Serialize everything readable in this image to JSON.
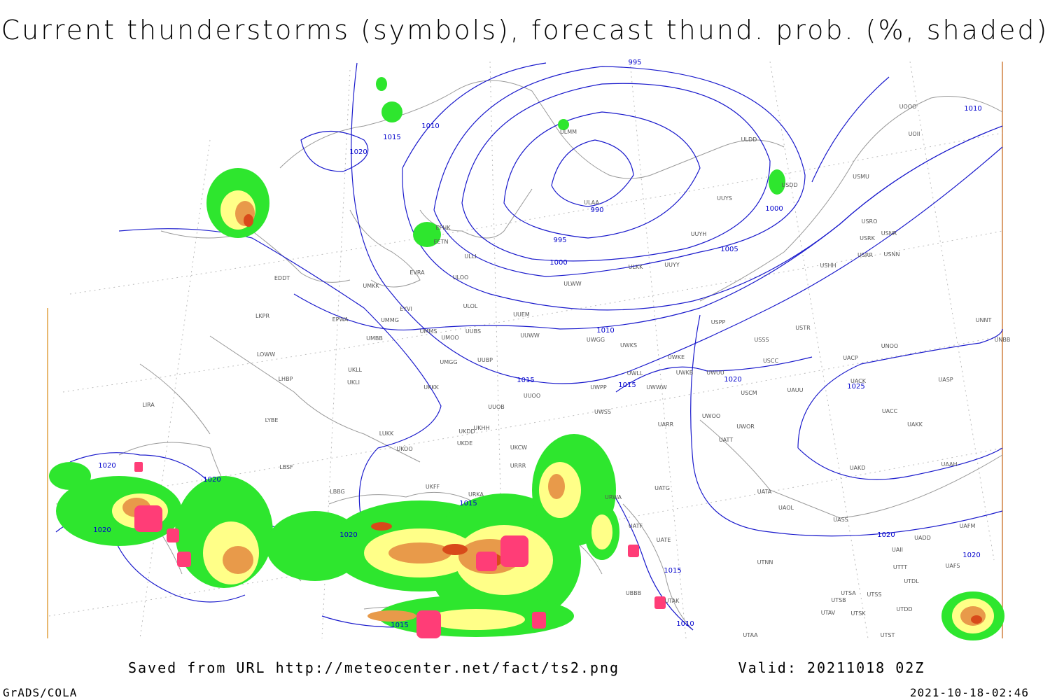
{
  "header": {
    "title": "Current thunderstorms (symbols), forecast thund. prob. (%, shaded)"
  },
  "footer": {
    "saved": "Saved from URL http://meteocenter.net/fact/ts2.png",
    "valid": "Valid: 20211018 02Z",
    "software": "GrADS/COLA",
    "timestamp": "2021-10-18-02:46"
  },
  "isobar_labels": [
    995,
    1010,
    1015,
    1020,
    990,
    995,
    1000,
    1005,
    1000,
    1010,
    1010,
    1015,
    1015,
    1020,
    1025,
    1020,
    1020,
    1020,
    1015,
    1020,
    1015,
    1015,
    1010,
    1020,
    1020
  ],
  "stations": [
    "ULMM",
    "ULAA",
    "ULDD",
    "USDD",
    "USMU",
    "UUYS",
    "EFHK",
    "EETN",
    "ULLI",
    "ULOO",
    "EVRA",
    "UMKK",
    "EDDT",
    "ULOL",
    "EYVI",
    "UUEM",
    "UMMG",
    "EPWA",
    "UMMS",
    "UMOO",
    "UUBS",
    "UUWW",
    "UWGG",
    "UWKS",
    "UMBB",
    "LKPR",
    "LOWW",
    "UKLL",
    "UKLI",
    "LHBP",
    "UUBP",
    "UMGG",
    "UKKK",
    "UUOO",
    "UUOB",
    "LIRA",
    "LYBE",
    "UKHH",
    "UKDD",
    "UKDE",
    "LUKK",
    "UKOO",
    "LBSF",
    "UKCW",
    "URRR",
    "LBBG",
    "UKFF",
    "URKA",
    "URWA",
    "UWPP",
    "UWSS",
    "UWLL",
    "UWWW",
    "UWKE",
    "UWKB",
    "UWUU",
    "UARR",
    "UWOO",
    "UWOR",
    "UATT",
    "USCM",
    "UAUU",
    "USCC",
    "USSS",
    "USTR",
    "USPP",
    "USHH",
    "USRR",
    "USNN",
    "USRK",
    "USNR",
    "USRO",
    "UNOO",
    "UACP",
    "UACK",
    "UACC",
    "UASP",
    "UAKK",
    "UAAH",
    "UAKD",
    "UATG",
    "UATA",
    "UAOL",
    "UASS",
    "UATE",
    "UATF",
    "UTNN",
    "UTTT",
    "UAII",
    "UADD",
    "UAFM",
    "UAFS",
    "UTDL",
    "UTSS",
    "UTSA",
    "UTSB",
    "UTAV",
    "UTSK",
    "UTDD",
    "UTAA",
    "UTST",
    "UTAK",
    "UBBB",
    "UNNT",
    "UNBB",
    "UOOO",
    "UOII",
    "UUYY",
    "ULKK",
    "UUYH",
    "ULWW"
  ]
}
